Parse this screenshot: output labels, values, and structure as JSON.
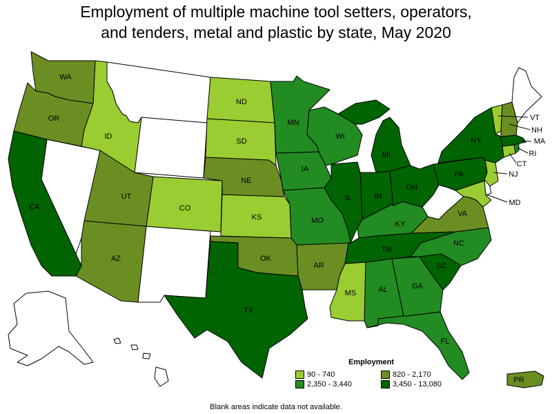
{
  "title_line1": "Employment of multiple machine tool setters, operators,",
  "title_line2": "and tenders, metal and plastic by state, May 2020",
  "legend": {
    "title": "Employment",
    "items": [
      {
        "label": "90 - 740",
        "color": "#9acd32"
      },
      {
        "label": "820 - 2,170",
        "color": "#6b8e23"
      },
      {
        "label": "2,350 - 3,440",
        "color": "#228b22"
      },
      {
        "label": "3,450 - 13,080",
        "color": "#006400"
      }
    ]
  },
  "note": "Blank areas indicate data not available.",
  "colors": {
    "no_data": "#ffffff",
    "c1": "#9acd32",
    "c2": "#6b8e23",
    "c3": "#228b22",
    "c4": "#006400"
  },
  "states": {
    "WA": "WA",
    "OR": "OR",
    "CA": "CA",
    "ID": "ID",
    "UT": "UT",
    "AZ": "AZ",
    "CO": "CO",
    "ND": "ND",
    "SD": "SD",
    "NE": "NE",
    "KS": "KS",
    "OK": "OK",
    "TX": "TX",
    "MN": "MN",
    "IA": "IA",
    "MO": "MO",
    "AR": "AR",
    "WI": "WI",
    "IL": "IL",
    "MI": "MI",
    "IN": "IN",
    "OH": "OH",
    "KY": "KY",
    "TN": "TN",
    "MS": "MS",
    "AL": "AL",
    "GA": "GA",
    "FL": "FL",
    "SC": "SC",
    "NC": "NC",
    "VA": "VA",
    "PA": "PA",
    "NY": "NY",
    "VT": "VT",
    "NH": "NH",
    "MA": "MA",
    "RI": "RI",
    "CT": "CT",
    "NJ": "NJ",
    "MD": "MD",
    "PR": "PR"
  }
}
